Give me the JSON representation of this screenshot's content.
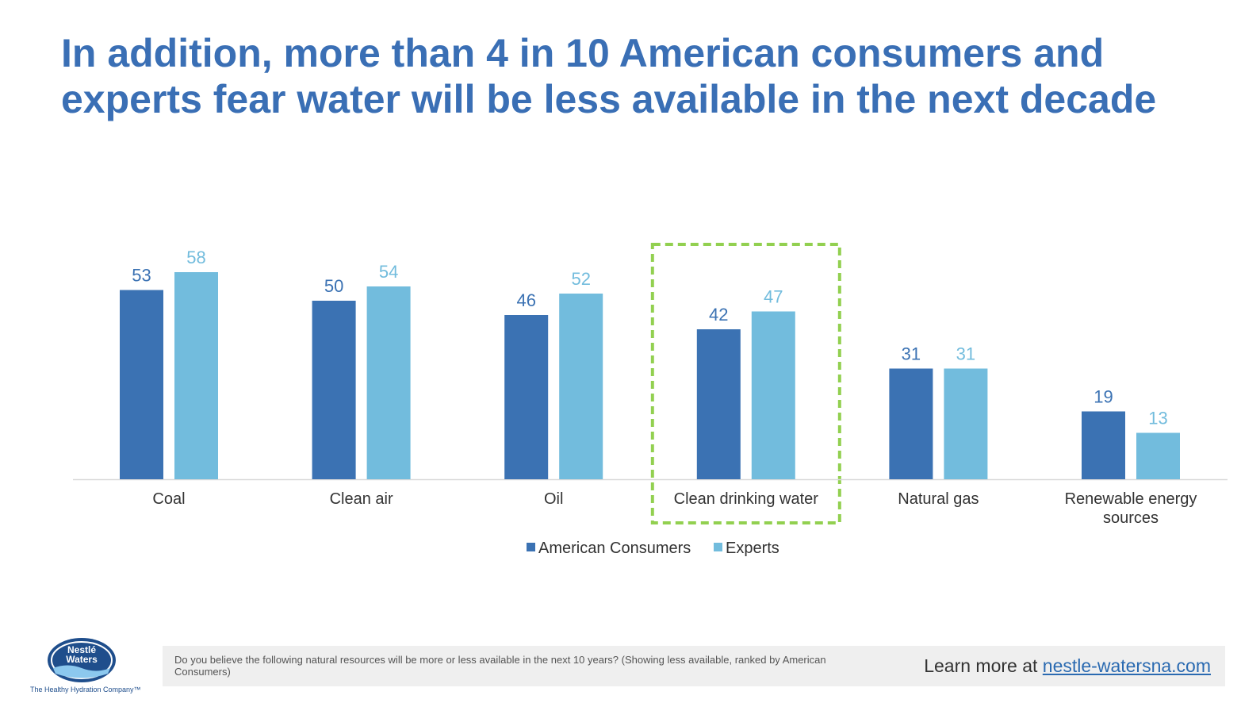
{
  "title": "In addition, more than 4 in 10 American consumers and experts fear water will be less available in the next decade",
  "colors": {
    "title": "#3a6fb5",
    "consumers": "#3b72b3",
    "experts": "#72bcdd",
    "highlight": "#92d050",
    "axis": "#d9d9d9"
  },
  "chart_data": {
    "type": "bar",
    "categories": [
      "Coal",
      "Clean air",
      "Oil",
      "Clean drinking water",
      "Natural gas",
      "Renewable energy sources"
    ],
    "series": [
      {
        "name": "American Consumers",
        "values": [
          53,
          50,
          46,
          42,
          31,
          19
        ]
      },
      {
        "name": "Experts",
        "values": [
          58,
          54,
          52,
          47,
          31,
          13
        ]
      }
    ],
    "ylim": [
      0,
      60
    ],
    "grid": false,
    "legend": "bottom-center",
    "highlighted_category": "Clean drinking water",
    "data_labels": true
  },
  "footer": {
    "question": "Do you believe the following natural resources will be more or less available in the next 10 years? (Showing less available, ranked by American Consumers)",
    "learn_more": "Learn more at",
    "link": "nestle-watersna.com"
  },
  "logo": {
    "brand_top": "Nestlé",
    "brand_bottom": "Waters",
    "tagline": "The Healthy Hydration Company™"
  }
}
